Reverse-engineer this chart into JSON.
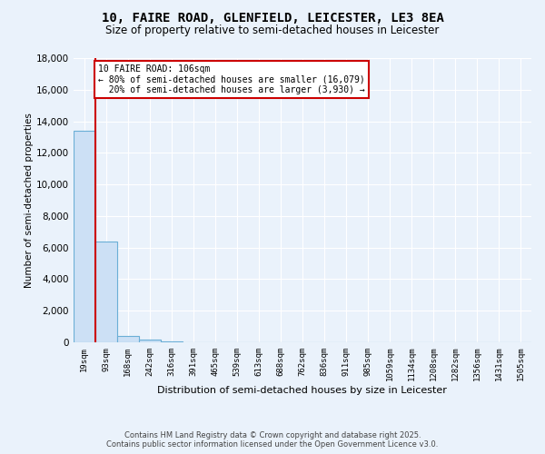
{
  "title": "10, FAIRE ROAD, GLENFIELD, LEICESTER, LE3 8EA",
  "subtitle": "Size of property relative to semi-detached houses in Leicester",
  "xlabel": "Distribution of semi-detached houses by size in Leicester",
  "ylabel": "Number of semi-detached properties",
  "bin_labels": [
    "19sqm",
    "93sqm",
    "168sqm",
    "242sqm",
    "316sqm",
    "391sqm",
    "465sqm",
    "539sqm",
    "613sqm",
    "688sqm",
    "762sqm",
    "836sqm",
    "911sqm",
    "985sqm",
    "1059sqm",
    "1134sqm",
    "1208sqm",
    "1282sqm",
    "1356sqm",
    "1431sqm",
    "1505sqm"
  ],
  "bin_values": [
    13400,
    6400,
    400,
    150,
    30,
    10,
    5,
    2,
    1,
    1,
    0,
    0,
    0,
    0,
    0,
    0,
    0,
    0,
    0,
    0,
    0
  ],
  "bar_color": "#cce0f5",
  "bar_edge_color": "#6aaed6",
  "property_size_label": "10 FAIRE ROAD: 106sqm",
  "pct_smaller": 80,
  "count_smaller": 16079,
  "pct_larger": 20,
  "count_larger": 3930,
  "red_line_color": "#cc0000",
  "annotation_box_edgecolor": "#cc0000",
  "ylim": [
    0,
    18000
  ],
  "yticks": [
    0,
    2000,
    4000,
    6000,
    8000,
    10000,
    12000,
    14000,
    16000,
    18000
  ],
  "footer_line1": "Contains HM Land Registry data © Crown copyright and database right 2025.",
  "footer_line2": "Contains public sector information licensed under the Open Government Licence v3.0.",
  "bg_color": "#eaf2fb",
  "plot_bg_color": "#eaf2fb",
  "red_line_x": 0.5
}
